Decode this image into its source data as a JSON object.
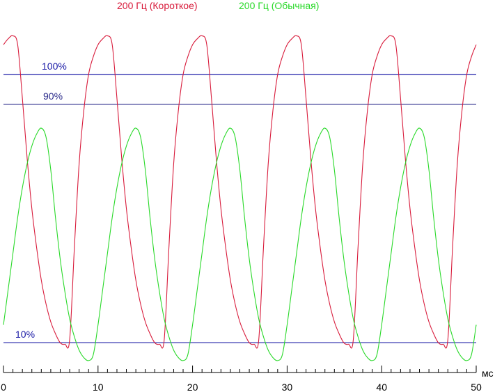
{
  "chart_data": {
    "type": "line",
    "title": "",
    "xlabel": "",
    "ylabel": "",
    "x_unit": "мс",
    "xlim": [
      0,
      50
    ],
    "ylim": [
      0,
      125
    ],
    "grid": false,
    "legend_position": "top-center",
    "x_ticks": [
      0,
      10,
      20,
      30,
      40,
      50
    ],
    "reference_lines": [
      {
        "label": "100%",
        "value": 100,
        "color": "#1a1aa6"
      },
      {
        "label": "90%",
        "value": 90,
        "color": "#2a2a8a"
      },
      {
        "label": "10%",
        "value": 10,
        "color": "#1a1aa6"
      }
    ],
    "series": [
      {
        "name": "200 Гц (Короткое)",
        "color": "#d81b3b",
        "x": [
          0,
          0.5,
          1.0,
          1.5,
          2.0,
          2.5,
          3.0,
          3.5,
          4.0,
          4.5,
          5.0,
          5.5,
          6.0,
          6.5,
          7.0,
          7.5,
          8.0,
          8.5,
          9.0,
          9.5,
          10.0,
          10.5,
          11.0,
          11.5,
          12.0,
          12.5,
          13.0,
          13.5,
          14.0,
          14.5,
          15.0,
          15.5,
          16.0,
          16.5,
          17.0,
          17.5,
          18.0,
          18.5,
          19.0,
          19.5,
          20.0,
          20.5,
          21.0,
          21.5,
          22.0,
          22.5,
          23.0,
          23.5,
          24.0,
          24.5,
          25.0,
          25.5,
          26.0,
          26.5,
          27.0,
          27.5,
          28.0,
          28.5,
          29.0,
          29.5,
          30.0,
          30.5,
          31.0,
          31.5,
          32.0,
          32.5,
          33.0,
          33.5,
          34.0,
          34.5,
          35.0,
          35.5,
          36.0,
          36.5,
          37.0,
          37.5,
          38.0,
          38.5,
          39.0,
          39.5,
          40.0,
          40.5,
          41.0,
          41.5,
          42.0,
          42.5,
          43.0,
          43.5,
          44.0,
          44.5,
          45.0,
          45.5,
          46.0,
          46.5,
          47.0,
          47.5,
          48.0,
          48.5,
          49.0,
          49.5,
          50.0
        ],
        "y": [
          110,
          112,
          113,
          110,
          92,
          72,
          55,
          42,
          31,
          23,
          17,
          13,
          10,
          9.5,
          11,
          42,
          70,
          88,
          100,
          106,
          110,
          112,
          113,
          110,
          92,
          72,
          55,
          42,
          31,
          23,
          17,
          13,
          10,
          9.5,
          11,
          42,
          70,
          88,
          100,
          106,
          110,
          112,
          113,
          110,
          92,
          72,
          55,
          42,
          31,
          23,
          17,
          13,
          10,
          9.5,
          11,
          42,
          70,
          88,
          100,
          106,
          110,
          112,
          113,
          110,
          92,
          72,
          55,
          42,
          31,
          23,
          17,
          13,
          10,
          9.5,
          11,
          42,
          70,
          88,
          100,
          106,
          110,
          112,
          113,
          110,
          92,
          72,
          55,
          42,
          31,
          23,
          17,
          13,
          10,
          9.5,
          11,
          42,
          70,
          88,
          100,
          106,
          110
        ]
      },
      {
        "name": "200 Гц (Обычная)",
        "color": "#29d929",
        "x": [
          0,
          0.5,
          1.0,
          1.5,
          2.0,
          2.5,
          3.0,
          3.5,
          4.0,
          4.5,
          5.0,
          5.5,
          6.0,
          6.5,
          7.0,
          7.5,
          8.0,
          8.5,
          9.0,
          9.5,
          10.0,
          10.5,
          11.0,
          11.5,
          12.0,
          12.5,
          13.0,
          13.5,
          14.0,
          14.5,
          15.0,
          15.5,
          16.0,
          16.5,
          17.0,
          17.5,
          18.0,
          18.5,
          19.0,
          19.5,
          20.0,
          20.5,
          21.0,
          21.5,
          22.0,
          22.5,
          23.0,
          23.5,
          24.0,
          24.5,
          25.0,
          25.5,
          26.0,
          26.5,
          27.0,
          27.5,
          28.0,
          28.5,
          29.0,
          29.5,
          30.0,
          30.5,
          31.0,
          31.5,
          32.0,
          32.5,
          33.0,
          33.5,
          34.0,
          34.5,
          35.0,
          35.5,
          36.0,
          36.5,
          37.0,
          37.5,
          38.0,
          38.5,
          39.0,
          39.5,
          40.0,
          40.5,
          41.0,
          41.5,
          42.0,
          42.5,
          43.0,
          43.5,
          44.0,
          44.5,
          45.0,
          45.5,
          46.0,
          46.5,
          47.0,
          47.5,
          48.0,
          48.5,
          49.0,
          49.5,
          50.0
        ],
        "y": [
          16,
          28,
          40,
          52,
          62,
          70,
          76,
          80,
          82,
          79,
          68,
          52,
          38,
          27,
          18,
          12,
          7.5,
          5,
          4,
          6,
          16,
          28,
          40,
          52,
          62,
          70,
          76,
          80,
          82,
          79,
          68,
          52,
          38,
          27,
          18,
          12,
          7.5,
          5,
          4,
          6,
          16,
          28,
          40,
          52,
          62,
          70,
          76,
          80,
          82,
          79,
          68,
          52,
          38,
          27,
          18,
          12,
          7.5,
          5,
          4,
          6,
          16,
          28,
          40,
          52,
          62,
          70,
          76,
          80,
          82,
          79,
          68,
          52,
          38,
          27,
          18,
          12,
          7.5,
          5,
          4,
          6,
          16,
          28,
          40,
          52,
          62,
          70,
          76,
          80,
          82,
          79,
          68,
          52,
          38,
          27,
          18,
          12,
          7.5,
          5,
          4,
          6,
          16
        ]
      }
    ]
  }
}
